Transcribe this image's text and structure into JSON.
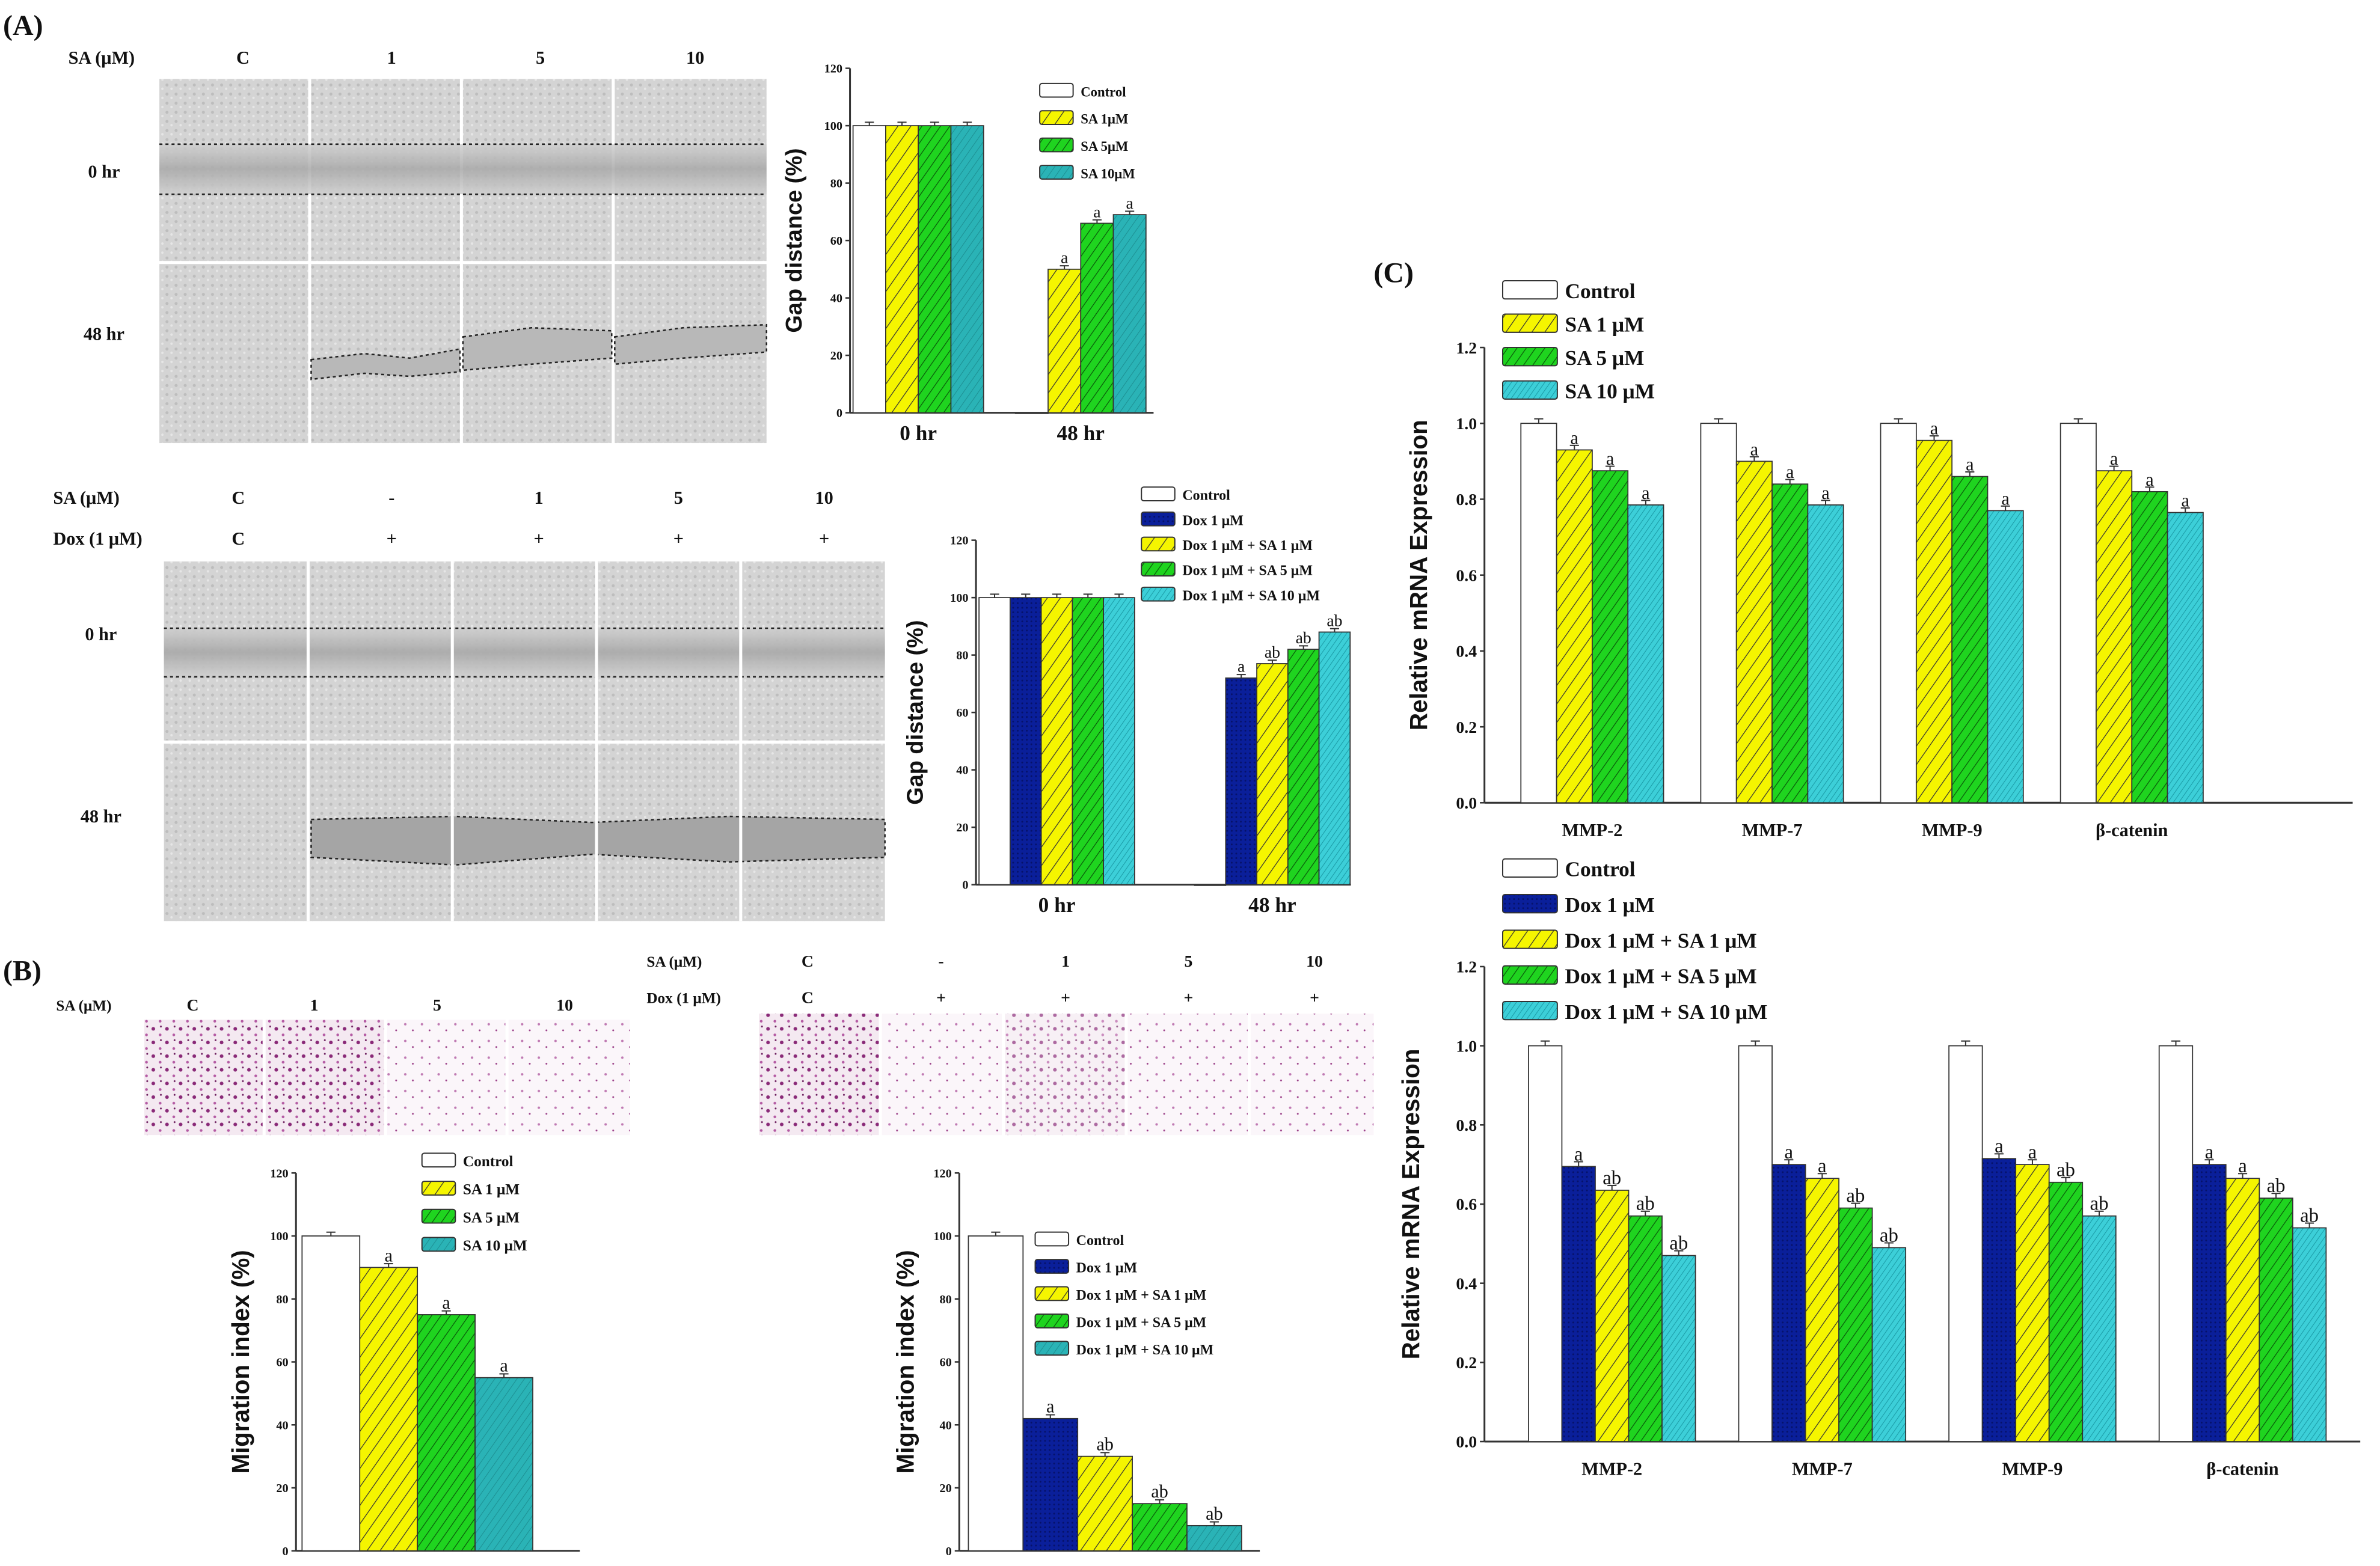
{
  "panels": {
    "a_label": "(A)",
    "b_label": "(B)",
    "c_label": "(C)"
  },
  "a_top_grid": {
    "header_label": "SA (μM)",
    "columns": [
      "C",
      "1",
      "5",
      "10"
    ],
    "rows": [
      "0 hr",
      "48 hr"
    ]
  },
  "a_bottom_grid": {
    "header_label_sa": "SA (μM)",
    "header_label_dox": "Dox (1 μM)",
    "sa_columns": [
      "C",
      "-",
      "1",
      "5",
      "10"
    ],
    "dox_columns": [
      "C",
      "+",
      "+",
      "+",
      "+"
    ],
    "rows": [
      "0 hr",
      "48 hr"
    ]
  },
  "b_left_grid": {
    "header_label": "SA (μM)",
    "columns": [
      "C",
      "1",
      "5",
      "10"
    ]
  },
  "b_right_grid": {
    "header_label_sa": "SA (μM)",
    "header_label_dox": "Dox (1 μM)",
    "sa_columns": [
      "C",
      "-",
      "1",
      "5",
      "10"
    ],
    "dox_columns": [
      "C",
      "+",
      "+",
      "+",
      "+"
    ]
  },
  "chart_data": [
    {
      "id": "a1",
      "type": "bar",
      "title": "",
      "categories": [
        "0 hr",
        "48 hr"
      ],
      "ylabel": "Gap distance (%)",
      "xlabel": "",
      "ylim": [
        0,
        120
      ],
      "ticks": [
        "0",
        "20",
        "40",
        "60",
        "80",
        "100",
        "120"
      ],
      "legend_position": "top-right",
      "series": [
        {
          "name": "Control",
          "style": "white",
          "values": [
            100,
            0
          ],
          "labels": [
            "",
            ""
          ]
        },
        {
          "name": "SA 1μM",
          "style": "yellow",
          "values": [
            100,
            50
          ],
          "labels": [
            "",
            "a"
          ]
        },
        {
          "name": "SA 5μM",
          "style": "green",
          "values": [
            100,
            66
          ],
          "labels": [
            "",
            "a"
          ]
        },
        {
          "name": "SA 10μM",
          "style": "tealdark",
          "values": [
            100,
            69
          ],
          "labels": [
            "",
            "a"
          ]
        }
      ]
    },
    {
      "id": "a2",
      "type": "bar",
      "title": "",
      "categories": [
        "0 hr",
        "48 hr"
      ],
      "ylabel": "Gap distance (%)",
      "xlabel": "",
      "ylim": [
        0,
        120
      ],
      "ticks": [
        "0",
        "20",
        "40",
        "60",
        "80",
        "100",
        "120"
      ],
      "legend_position": "top-right",
      "series": [
        {
          "name": "Control",
          "style": "white",
          "values": [
            100,
            0
          ],
          "labels": [
            "",
            ""
          ]
        },
        {
          "name": "Dox 1 μM",
          "style": "navy",
          "values": [
            100,
            72
          ],
          "labels": [
            "",
            "a"
          ]
        },
        {
          "name": "Dox 1 μM + SA 1 μM",
          "style": "yellow",
          "values": [
            100,
            77
          ],
          "labels": [
            "",
            "ab"
          ]
        },
        {
          "name": "Dox 1 μM + SA 5 μM",
          "style": "green",
          "values": [
            100,
            82
          ],
          "labels": [
            "",
            "ab"
          ]
        },
        {
          "name": "Dox 1 μM + SA 10 μM",
          "style": "teal",
          "values": [
            100,
            88
          ],
          "labels": [
            "",
            "ab"
          ]
        }
      ]
    },
    {
      "id": "b1",
      "type": "bar",
      "title": "",
      "categories": [
        ""
      ],
      "ylabel": "Migration index (%)",
      "xlabel": "",
      "ylim": [
        0,
        120
      ],
      "ticks": [
        "0",
        "20",
        "40",
        "60",
        "80",
        "100",
        "120"
      ],
      "legend_position": "top-right",
      "series": [
        {
          "name": "Control",
          "style": "white",
          "values": [
            100
          ],
          "labels": [
            ""
          ]
        },
        {
          "name": "SA 1 μM",
          "style": "yellow",
          "values": [
            90
          ],
          "labels": [
            "a"
          ]
        },
        {
          "name": "SA 5 μM",
          "style": "green",
          "values": [
            75
          ],
          "labels": [
            "a"
          ]
        },
        {
          "name": "SA 10 μM",
          "style": "tealdark",
          "values": [
            55
          ],
          "labels": [
            "a"
          ]
        }
      ]
    },
    {
      "id": "b2",
      "type": "bar",
      "title": "",
      "categories": [
        ""
      ],
      "ylabel": "Migration index (%)",
      "xlabel": "",
      "ylim": [
        0,
        120
      ],
      "ticks": [
        "0",
        "20",
        "40",
        "60",
        "80",
        "100",
        "120"
      ],
      "legend_position": "top-right",
      "series": [
        {
          "name": "Control",
          "style": "white",
          "values": [
            100
          ],
          "labels": [
            ""
          ]
        },
        {
          "name": "Dox 1 μM",
          "style": "navy",
          "values": [
            42
          ],
          "labels": [
            "a"
          ]
        },
        {
          "name": "Dox 1 μM + SA 1 μM",
          "style": "yellow",
          "values": [
            30
          ],
          "labels": [
            "ab"
          ]
        },
        {
          "name": "Dox 1 μM + SA 5 μM",
          "style": "green",
          "values": [
            15
          ],
          "labels": [
            "ab"
          ]
        },
        {
          "name": "Dox 1 μM + SA 10 μM",
          "style": "tealdark",
          "values": [
            8
          ],
          "labels": [
            "ab"
          ]
        }
      ]
    },
    {
      "id": "c1",
      "type": "bar",
      "title": "",
      "categories": [
        "MMP-2",
        "MMP-7",
        "MMP-9",
        "β-catenin"
      ],
      "ylabel": "Relative mRNA Expression",
      "xlabel": "",
      "ylim": [
        0,
        1.2
      ],
      "ticks": [
        "0.0",
        "0.2",
        "0.4",
        "0.6",
        "0.8",
        "1.0",
        "1.2"
      ],
      "legend_position": "top-left",
      "series": [
        {
          "name": "Control",
          "style": "white",
          "values": [
            1.0,
            1.0,
            1.0,
            1.0
          ],
          "labels": [
            "",
            "",
            "",
            ""
          ]
        },
        {
          "name": "SA 1 μM",
          "style": "yellow",
          "values": [
            0.93,
            0.9,
            0.955,
            0.875
          ],
          "labels": [
            "a",
            "a",
            "a",
            "a"
          ]
        },
        {
          "name": "SA 5 μM",
          "style": "green",
          "values": [
            0.875,
            0.84,
            0.86,
            0.82
          ],
          "labels": [
            "a",
            "a",
            "a",
            "a"
          ]
        },
        {
          "name": "SA 10 μM",
          "style": "teal",
          "values": [
            0.785,
            0.785,
            0.77,
            0.765
          ],
          "labels": [
            "a",
            "a",
            "a",
            "a"
          ]
        }
      ]
    },
    {
      "id": "c2",
      "type": "bar",
      "title": "",
      "categories": [
        "MMP-2",
        "MMP-7",
        "MMP-9",
        "β-catenin"
      ],
      "ylabel": "Relative mRNA Expression",
      "xlabel": "",
      "ylim": [
        0,
        1.2
      ],
      "ticks": [
        "0.0",
        "0.2",
        "0.4",
        "0.6",
        "0.8",
        "1.0",
        "1.2"
      ],
      "legend_position": "top-left",
      "series": [
        {
          "name": "Control",
          "style": "white",
          "values": [
            1.0,
            1.0,
            1.0,
            1.0
          ],
          "labels": [
            "",
            "",
            "",
            ""
          ]
        },
        {
          "name": "Dox 1 μM",
          "style": "navy",
          "values": [
            0.695,
            0.7,
            0.715,
            0.7
          ],
          "labels": [
            "a",
            "a",
            "a",
            "a"
          ]
        },
        {
          "name": "Dox 1 μM + SA 1 μM",
          "style": "yellow",
          "values": [
            0.635,
            0.665,
            0.7,
            0.665
          ],
          "labels": [
            "ab",
            "a",
            "a",
            "a"
          ]
        },
        {
          "name": "Dox 1 μM + SA 5 μM",
          "style": "green",
          "values": [
            0.57,
            0.59,
            0.655,
            0.615
          ],
          "labels": [
            "ab",
            "ab",
            "ab",
            "ab"
          ]
        },
        {
          "name": "Dox 1 μM + SA 10 μM",
          "style": "teal",
          "values": [
            0.47,
            0.49,
            0.57,
            0.54
          ],
          "labels": [
            "ab",
            "ab",
            "ab",
            "ab"
          ]
        }
      ]
    }
  ]
}
